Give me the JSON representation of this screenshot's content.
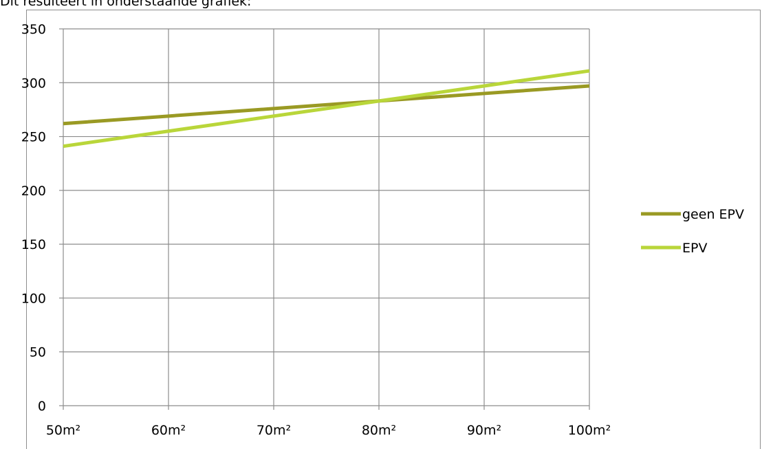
{
  "caption": "Dit resulteert in onderstaande grafiek:",
  "chart_data": {
    "type": "line",
    "categories": [
      "50m²",
      "60m²",
      "70m²",
      "80m²",
      "90m²",
      "100m²"
    ],
    "series": [
      {
        "name": "geen EPV",
        "color": "#9a9a24",
        "values": [
          262,
          269,
          276,
          283,
          290,
          297
        ]
      },
      {
        "name": "EPV",
        "color": "#b9d63a",
        "values": [
          241,
          255,
          269,
          283,
          297,
          311
        ]
      }
    ],
    "title": "",
    "xlabel": "",
    "ylabel": "",
    "ylim": [
      0,
      350
    ],
    "yticks": [
      0,
      50,
      100,
      150,
      200,
      250,
      300,
      350
    ],
    "grid": true,
    "legend_position": "right"
  }
}
